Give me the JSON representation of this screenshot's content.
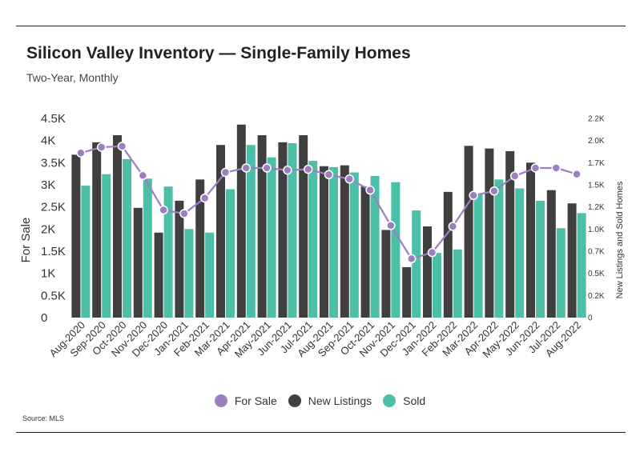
{
  "title": "Silicon Valley Inventory — Single-Family Homes",
  "subtitle": "Two-Year, Monthly",
  "source": "Source:  MLS",
  "chart_data": {
    "type": "bar",
    "categories": [
      "Aug-2020",
      "Sep-2020",
      "Oct-2020",
      "Nov-2020",
      "Dec-2020",
      "Jan-2021",
      "Feb-2021",
      "Mar-2021",
      "Apr-2021",
      "May-2021",
      "Jun-2021",
      "Jul-2021",
      "Aug-2021",
      "Sep-2021",
      "Oct-2021",
      "Nov-2021",
      "Dec-2021",
      "Jan-2022",
      "Feb-2022",
      "Mar-2022",
      "Apr-2022",
      "May-2022",
      "Jun-2022",
      "Jul-2022",
      "Aug-2022"
    ],
    "left_axis": {
      "label": "For Sale",
      "ylim": [
        0,
        4500
      ],
      "ticks": [
        "0",
        "0.5K",
        "1K",
        "1.5K",
        "2K",
        "2.5K",
        "3K",
        "3.5K",
        "4K",
        "4.5K"
      ]
    },
    "right_axis": {
      "label": "New Listings and Sold Homes",
      "ylim": [
        0,
        2250
      ],
      "ticks": [
        "0",
        "0.2K",
        "0.5K",
        "0.7K",
        "1.0K",
        "1.2K",
        "1.5K",
        "1.7K",
        "2.0K",
        "2.2K"
      ]
    },
    "series": [
      {
        "name": "For Sale",
        "kind": "line",
        "axis": "left",
        "color": "#9b7fc0",
        "values": [
          3720,
          3850,
          3870,
          3210,
          2430,
          2350,
          2700,
          3280,
          3380,
          3380,
          3330,
          3350,
          3230,
          3130,
          2880,
          2080,
          1330,
          1470,
          2060,
          2760,
          2860,
          3200,
          3380,
          3380,
          3240
        ]
      },
      {
        "name": "New Listings",
        "kind": "bar",
        "axis": "right",
        "color": "#3f3f3f",
        "values": [
          1840,
          1980,
          2060,
          1240,
          960,
          1320,
          1560,
          1950,
          2180,
          2060,
          1980,
          2060,
          1710,
          1720,
          1480,
          990,
          570,
          1030,
          1420,
          1940,
          1910,
          1880,
          1750,
          1440,
          1290
        ]
      },
      {
        "name": "Sold",
        "kind": "bar",
        "axis": "right",
        "color": "#4bbfa7",
        "values": [
          1490,
          1620,
          1790,
          1570,
          1480,
          1000,
          960,
          1450,
          1950,
          1810,
          1970,
          1770,
          1700,
          1640,
          1600,
          1530,
          1210,
          730,
          770,
          1390,
          1560,
          1460,
          1320,
          1010,
          1180
        ]
      }
    ],
    "legend_position": "bottom-center",
    "grid": false
  },
  "legend": [
    {
      "label": "For Sale",
      "color": "#9b7fc0"
    },
    {
      "label": "New Listings",
      "color": "#3f3f3f"
    },
    {
      "label": "Sold",
      "color": "#4bbfa7"
    }
  ]
}
